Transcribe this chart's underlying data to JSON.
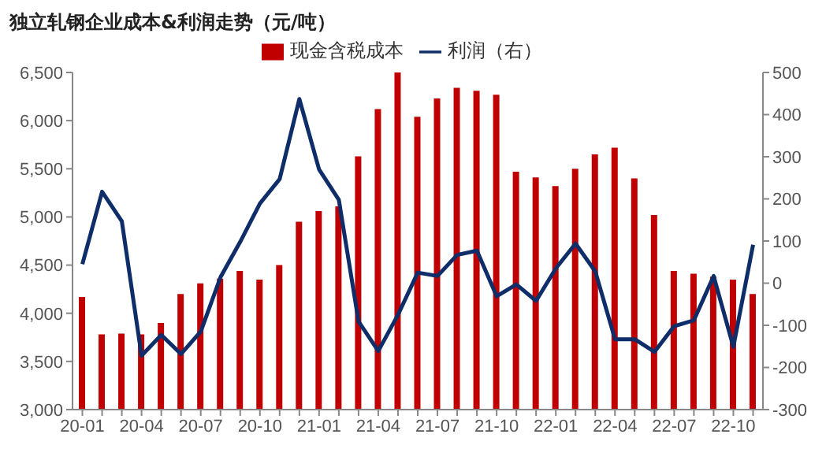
{
  "chart_data": {
    "type": "bar",
    "title": "独立轧钢企业成本&利润走势（元/吨）",
    "categories": [
      "20-01",
      null,
      null,
      "20-04",
      null,
      null,
      "20-07",
      null,
      null,
      "20-10",
      null,
      null,
      "21-01",
      null,
      null,
      "21-04",
      null,
      null,
      "21-07",
      null,
      null,
      "21-10",
      null,
      null,
      "22-01",
      null,
      null,
      "22-04",
      null,
      null,
      "22-07",
      null,
      null,
      "22-10",
      null
    ],
    "series": [
      {
        "name": "现金含税成本",
        "color": "#c00000",
        "values": [
          4170,
          3780,
          3790,
          3780,
          3900,
          4200,
          4310,
          4360,
          4440,
          4350,
          4500,
          4950,
          5060,
          5110,
          5630,
          6120,
          6500,
          6040,
          6230,
          6340,
          6310,
          6270,
          5470,
          5410,
          5320,
          5500,
          5650,
          5720,
          5400,
          5020,
          4440,
          4410,
          4380,
          4350,
          4200
        ]
      },
      {
        "name": "利润（右）",
        "type": "line",
        "axis": "y2",
        "color": "#0f2d69",
        "values": [
          45,
          217,
          147,
          -172,
          -123,
          -168,
          -115,
          14,
          98,
          189,
          247,
          437,
          270,
          198,
          -91,
          -161,
          -75,
          25,
          17,
          67,
          77,
          -31,
          -3,
          -42,
          35,
          94,
          28,
          -133,
          -133,
          -163,
          -102,
          -88,
          17,
          -151,
          91
        ]
      }
    ],
    "ylim": [
      3000,
      6500
    ],
    "yticks": [
      {
        "value": 3000,
        "label": "3,000"
      },
      {
        "value": 3500,
        "label": "3,500"
      },
      {
        "value": 4000,
        "label": "4,000"
      },
      {
        "value": 4500,
        "label": "4,500"
      },
      {
        "value": 5000,
        "label": "5,000"
      },
      {
        "value": 5500,
        "label": "5,500"
      },
      {
        "value": 6000,
        "label": "6,000"
      },
      {
        "value": 6500,
        "label": "6,500"
      }
    ],
    "y2lim": [
      -300,
      500
    ],
    "y2ticks": [
      -300,
      -200,
      -100,
      0,
      100,
      200,
      300,
      400,
      500
    ],
    "grid": false,
    "legend": "top",
    "marker": "none",
    "line_style": "solid"
  }
}
